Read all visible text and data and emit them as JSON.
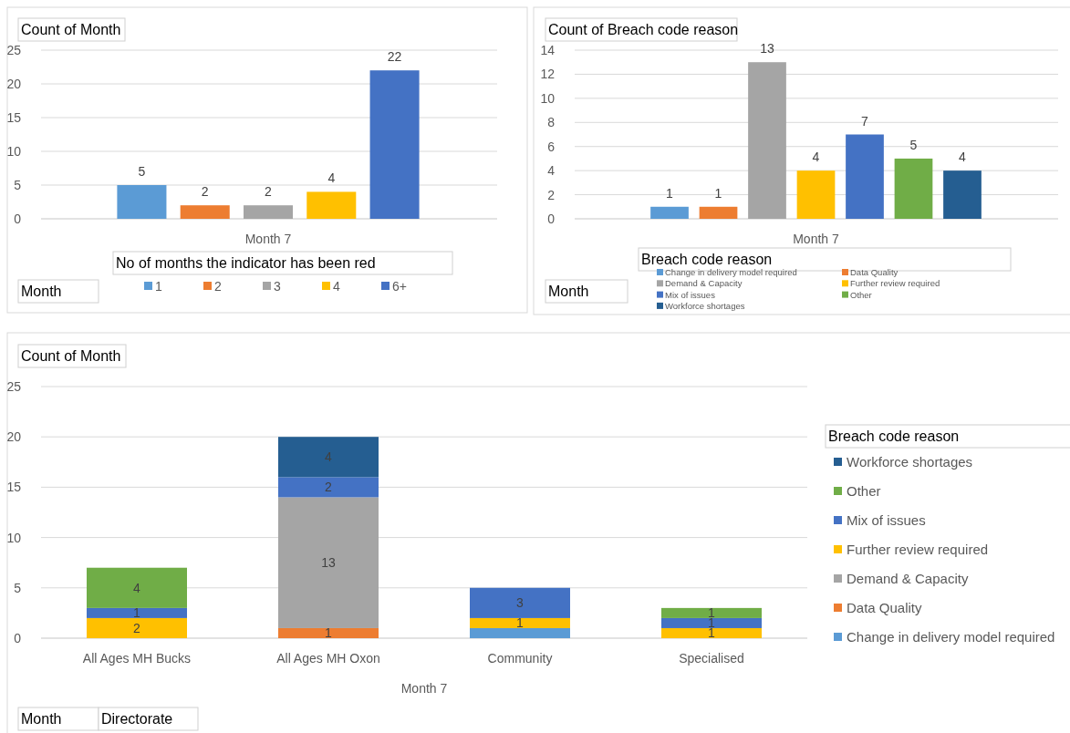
{
  "chart_data": [
    {
      "type": "bar",
      "title": "Count of Month",
      "legend_title": "No of months the indicator has been red",
      "categories": [
        "Month 7"
      ],
      "series": [
        {
          "name": "1",
          "color": "#5b9bd5",
          "values": [
            5
          ]
        },
        {
          "name": "2",
          "color": "#ed7d31",
          "values": [
            2
          ]
        },
        {
          "name": "3",
          "color": "#a5a5a5",
          "values": [
            2
          ]
        },
        {
          "name": "4",
          "color": "#ffc000",
          "values": [
            4
          ]
        },
        {
          "name": "6+",
          "color": "#4472c4",
          "values": [
            22
          ]
        }
      ],
      "ylim": [
        0,
        25
      ],
      "yticks": [
        0,
        5,
        10,
        15,
        20,
        25
      ],
      "grid": "y",
      "legend": "bottom",
      "data_labels": true,
      "annotations": [
        "Month"
      ]
    },
    {
      "type": "bar",
      "title": "Count of Breach code reason",
      "legend_title": "Breach code reason",
      "categories": [
        "Month 7"
      ],
      "series": [
        {
          "name": "Change in delivery model required",
          "color": "#5b9bd5",
          "values": [
            1
          ]
        },
        {
          "name": "Data Quality",
          "color": "#ed7d31",
          "values": [
            1
          ]
        },
        {
          "name": "Demand & Capacity",
          "color": "#a5a5a5",
          "values": [
            13
          ]
        },
        {
          "name": "Further review required",
          "color": "#ffc000",
          "values": [
            4
          ]
        },
        {
          "name": "Mix of issues",
          "color": "#4472c4",
          "values": [
            7
          ]
        },
        {
          "name": "Other",
          "color": "#70ad47",
          "values": [
            5
          ]
        },
        {
          "name": "Workforce shortages",
          "color": "#255e91",
          "values": [
            4
          ]
        }
      ],
      "ylim": [
        0,
        14
      ],
      "yticks": [
        0,
        2,
        4,
        6,
        8,
        10,
        12,
        14
      ],
      "grid": "y",
      "legend": "bottom",
      "data_labels": true,
      "annotations": [
        "Month"
      ]
    },
    {
      "type": "bar",
      "stacked": true,
      "title": "Count of Month",
      "xlabel": "Month 7",
      "legend_title": "Breach code reason",
      "categories": [
        "All Ages MH Bucks",
        "All Ages MH Oxon",
        "Community",
        "Specialised"
      ],
      "series": [
        {
          "name": "Change in delivery model required",
          "color": "#5b9bd5",
          "values": [
            null,
            null,
            1,
            null
          ],
          "value_labels": [
            null,
            null,
            null,
            null
          ]
        },
        {
          "name": "Data Quality",
          "color": "#ed7d31",
          "values": [
            null,
            1,
            null,
            null
          ],
          "value_labels": [
            null,
            "1",
            null,
            null
          ]
        },
        {
          "name": "Demand & Capacity",
          "color": "#a5a5a5",
          "values": [
            null,
            13,
            null,
            null
          ],
          "value_labels": [
            null,
            "13",
            null,
            null
          ]
        },
        {
          "name": "Further review required",
          "color": "#ffc000",
          "values": [
            2,
            null,
            1,
            1
          ],
          "value_labels": [
            "2",
            null,
            "1",
            "1"
          ]
        },
        {
          "name": "Mix of issues",
          "color": "#4472c4",
          "values": [
            1,
            2,
            3,
            1
          ],
          "value_labels": [
            "1",
            "2",
            "3",
            "1"
          ]
        },
        {
          "name": "Other",
          "color": "#70ad47",
          "values": [
            4,
            null,
            null,
            1
          ],
          "value_labels": [
            "4",
            null,
            null,
            "1"
          ]
        },
        {
          "name": "Workforce shortages",
          "color": "#255e91",
          "values": [
            null,
            4,
            null,
            null
          ],
          "value_labels": [
            null,
            "4",
            null,
            null
          ]
        }
      ],
      "ylim": [
        0,
        25
      ],
      "yticks": [
        0,
        5,
        10,
        15,
        20,
        25
      ],
      "grid": "y",
      "legend": "right",
      "annotations": [
        "Month",
        "Directorate"
      ]
    }
  ]
}
